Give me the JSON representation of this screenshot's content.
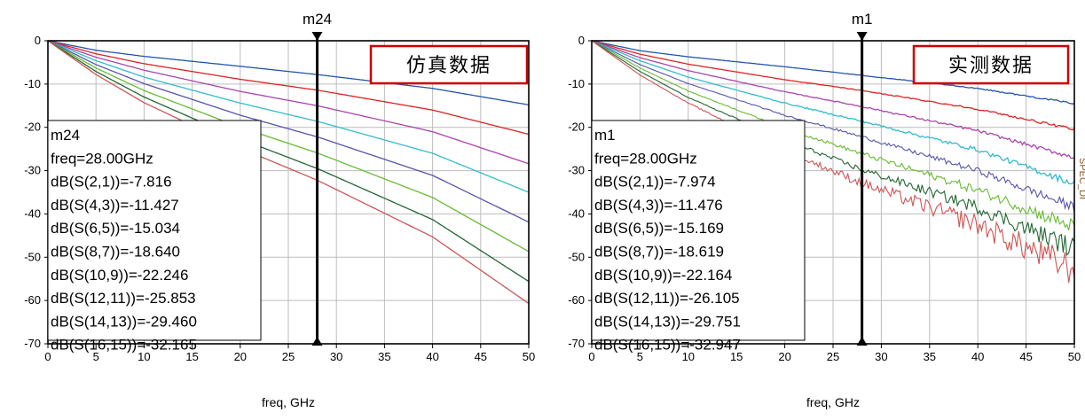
{
  "chart_data": [
    {
      "type": "line",
      "label_box": "仿真数据",
      "xlabel": "freq, GHz",
      "xlim": [
        0,
        50
      ],
      "ylim": [
        -70,
        0
      ],
      "xticks": [
        "0",
        "5",
        "10",
        "15",
        "20",
        "25",
        "30",
        "35",
        "40",
        "45",
        "50"
      ],
      "yticks": [
        "0",
        "-10",
        "-20",
        "-30",
        "-40",
        "-50",
        "-60",
        "-70"
      ],
      "grid": true,
      "marker": {
        "name": "m24",
        "freq": 28.0,
        "readout": {
          "name": "m24",
          "lines": [
            "freq=28.00GHz",
            "dB(S(2,1))=-7.816",
            "dB(S(4,3))=-11.427",
            "dB(S(6,5))=-15.034",
            "dB(S(8,7))=-18.640",
            "dB(S(10,9))=-22.246",
            "dB(S(12,11))=-25.853",
            "dB(S(14,13))=-29.460",
            "dB(S(16,15))=-32.165"
          ]
        }
      },
      "series": [
        {
          "name": "dB(S(2,1))",
          "color": "#2255aa",
          "x": [
            0,
            5,
            10,
            20,
            28,
            40,
            50
          ],
          "values": [
            0,
            -2.2,
            -3.6,
            -5.9,
            -7.8,
            -11.0,
            -14.8
          ],
          "noise": 0
        },
        {
          "name": "dB(S(4,3))",
          "color": "#dd2222",
          "x": [
            0,
            5,
            10,
            20,
            28,
            40,
            50
          ],
          "values": [
            0,
            -3.0,
            -5.3,
            -8.9,
            -11.4,
            -16.0,
            -21.6
          ],
          "noise": 0
        },
        {
          "name": "dB(S(6,5))",
          "color": "#aa44aa",
          "x": [
            0,
            5,
            10,
            20,
            28,
            40,
            50
          ],
          "values": [
            0,
            -3.8,
            -6.8,
            -11.7,
            -15.0,
            -21.0,
            -28.4
          ],
          "noise": 0
        },
        {
          "name": "dB(S(8,7))",
          "color": "#33bbcc",
          "x": [
            0,
            5,
            10,
            20,
            28,
            40,
            50
          ],
          "values": [
            0,
            -4.6,
            -8.4,
            -14.4,
            -18.6,
            -26.0,
            -35.0
          ],
          "noise": 0
        },
        {
          "name": "dB(S(10,9))",
          "color": "#5555aa",
          "x": [
            0,
            5,
            10,
            20,
            28,
            40,
            50
          ],
          "values": [
            0,
            -5.5,
            -9.9,
            -17.2,
            -22.2,
            -31.1,
            -41.9
          ],
          "noise": 0
        },
        {
          "name": "dB(S(12,11))",
          "color": "#66bb33",
          "x": [
            0,
            5,
            10,
            20,
            28,
            40,
            50
          ],
          "values": [
            0,
            -6.3,
            -11.5,
            -20.0,
            -25.9,
            -36.2,
            -48.7
          ],
          "noise": 0
        },
        {
          "name": "dB(S(14,13))",
          "color": "#226633",
          "x": [
            0,
            5,
            10,
            20,
            28,
            40,
            50
          ],
          "values": [
            0,
            -7.1,
            -13.0,
            -22.7,
            -29.5,
            -41.3,
            -55.6
          ],
          "noise": 0
        },
        {
          "name": "dB(S(16,15))",
          "color": "#cc5555",
          "x": [
            0,
            5,
            10,
            20,
            28,
            40,
            50
          ],
          "values": [
            0,
            -7.8,
            -14.3,
            -24.8,
            -32.2,
            -45.3,
            -60.7
          ],
          "noise": 0
        }
      ]
    },
    {
      "type": "line",
      "label_box": "实测数据",
      "xlabel": "freq, GHz",
      "xlim": [
        0,
        50
      ],
      "ylim": [
        -70,
        0
      ],
      "xticks": [
        "0",
        "5",
        "10",
        "15",
        "20",
        "25",
        "30",
        "35",
        "40",
        "45",
        "50"
      ],
      "yticks": [
        "0",
        "-10",
        "-20",
        "-30",
        "-40",
        "-50",
        "-60",
        "-70"
      ],
      "grid": true,
      "side_text": "SPEC_DI",
      "marker": {
        "name": "m1",
        "freq": 28.0,
        "readout": {
          "name": "m1",
          "lines": [
            "freq=28.00GHz",
            "dB(S(2,1))=-7.974",
            "dB(S(4,3))=-11.476",
            "dB(S(6,5))=-15.169",
            "dB(S(8,7))=-18.619",
            "dB(S(10,9))=-22.164",
            "dB(S(12,11))=-26.105",
            "dB(S(14,13))=-29.751",
            "dB(S(16,15))=-32.947"
          ]
        }
      },
      "series": [
        {
          "name": "dB(S(2,1))",
          "color": "#2255aa",
          "x": [
            0,
            5,
            10,
            20,
            28,
            40,
            50
          ],
          "values": [
            0,
            -2.3,
            -3.7,
            -6.0,
            -8.0,
            -11.0,
            -14.5
          ],
          "noise": 0.2
        },
        {
          "name": "dB(S(4,3))",
          "color": "#dd2222",
          "x": [
            0,
            5,
            10,
            20,
            28,
            40,
            50
          ],
          "values": [
            0,
            -3.1,
            -5.4,
            -9.0,
            -11.5,
            -15.8,
            -20.5
          ],
          "noise": 0.3
        },
        {
          "name": "dB(S(6,5))",
          "color": "#aa44aa",
          "x": [
            0,
            5,
            10,
            20,
            28,
            40,
            50
          ],
          "values": [
            0,
            -3.9,
            -6.9,
            -11.8,
            -15.2,
            -20.8,
            -27.0
          ],
          "noise": 0.5
        },
        {
          "name": "dB(S(8,7))",
          "color": "#33bbcc",
          "x": [
            0,
            5,
            10,
            20,
            28,
            40,
            50
          ],
          "values": [
            0,
            -4.6,
            -8.4,
            -14.4,
            -18.6,
            -25.2,
            -33.0
          ],
          "noise": 0.8
        },
        {
          "name": "dB(S(10,9))",
          "color": "#5555aa",
          "x": [
            0,
            5,
            10,
            20,
            28,
            40,
            50
          ],
          "values": [
            0,
            -5.5,
            -9.9,
            -17.2,
            -22.2,
            -30.0,
            -38.5
          ],
          "noise": 1.2
        },
        {
          "name": "dB(S(12,11))",
          "color": "#66bb33",
          "x": [
            0,
            5,
            10,
            20,
            28,
            40,
            50
          ],
          "values": [
            0,
            -6.3,
            -11.6,
            -20.2,
            -26.1,
            -34.5,
            -43.0
          ],
          "noise": 1.8
        },
        {
          "name": "dB(S(14,13))",
          "color": "#226633",
          "x": [
            0,
            5,
            10,
            20,
            28,
            40,
            50
          ],
          "values": [
            0,
            -7.1,
            -13.1,
            -22.9,
            -29.8,
            -38.5,
            -48.0
          ],
          "noise": 2.5
        },
        {
          "name": "dB(S(16,15))",
          "color": "#cc5555",
          "x": [
            0,
            5,
            10,
            20,
            28,
            40,
            50
          ],
          "values": [
            0,
            -7.9,
            -14.4,
            -25.4,
            -32.9,
            -42.5,
            -53.0
          ],
          "noise": 4.0
        }
      ]
    }
  ]
}
